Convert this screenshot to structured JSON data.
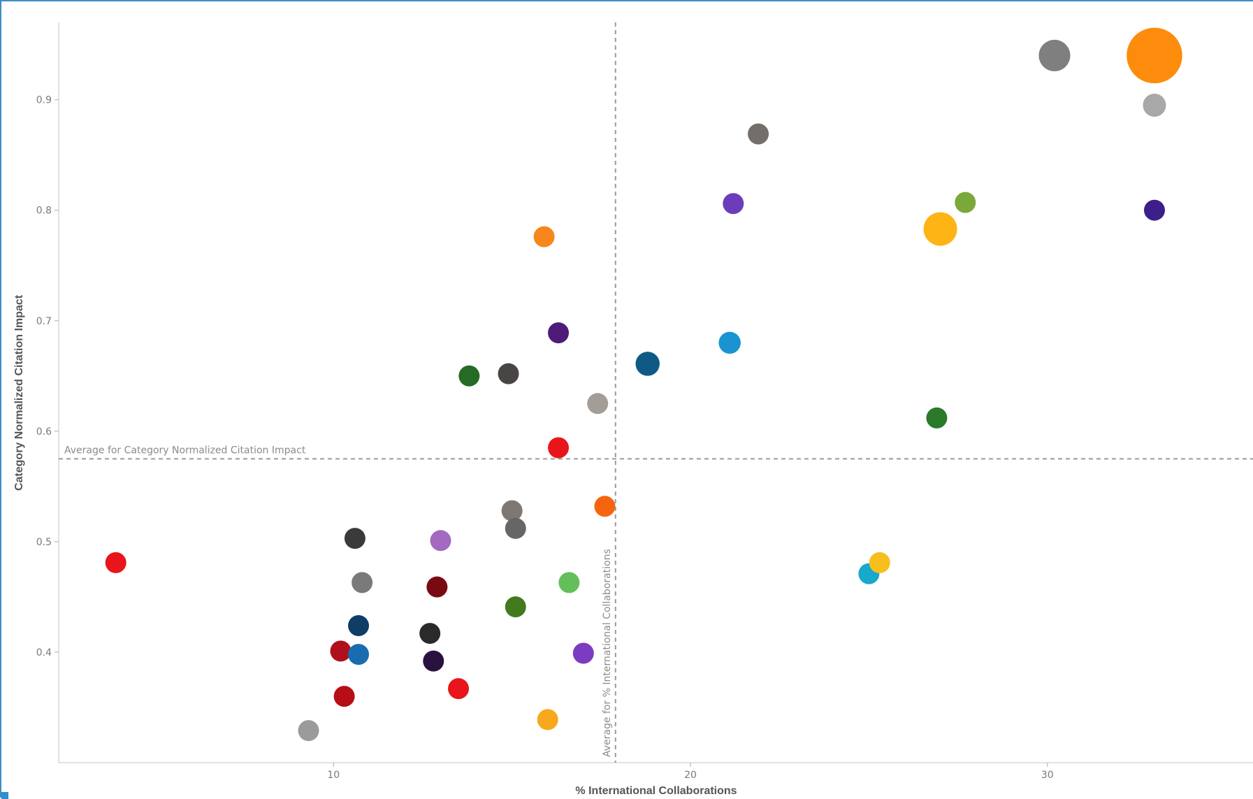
{
  "chart_data": {
    "type": "scatter",
    "title": "",
    "xlabel": "% International Collaborations",
    "ylabel": "Category Normalized Citation Impact",
    "xlim": [
      2.3,
      35.8
    ],
    "ylim": [
      0.3,
      0.97
    ],
    "x_ticks": [
      10,
      20,
      30
    ],
    "y_ticks": [
      0.4,
      0.5,
      0.6,
      0.7,
      0.8,
      0.9
    ],
    "y_tick_labels": [
      "0.4",
      "0.5",
      "0.6",
      "0.7",
      "0.8",
      "0.9"
    ],
    "grid": false,
    "reference_lines": [
      {
        "axis": "y",
        "value": 0.575,
        "label": "Average for Category Normalized Citation Impact"
      },
      {
        "axis": "x",
        "value": 17.9,
        "label": "Average for % International Collaborations"
      }
    ],
    "points": [
      {
        "x": 3.9,
        "y": 0.481,
        "size": 1.0,
        "color": "#e8151b"
      },
      {
        "x": 9.3,
        "y": 0.329,
        "size": 1.0,
        "color": "#9b9b9b"
      },
      {
        "x": 10.2,
        "y": 0.401,
        "size": 1.0,
        "color": "#b0101b"
      },
      {
        "x": 10.3,
        "y": 0.36,
        "size": 1.0,
        "color": "#b60f17"
      },
      {
        "x": 10.6,
        "y": 0.503,
        "size": 1.0,
        "color": "#3a3a3a"
      },
      {
        "x": 10.7,
        "y": 0.398,
        "size": 1.0,
        "color": "#1a6cb0"
      },
      {
        "x": 10.7,
        "y": 0.424,
        "size": 1.0,
        "color": "#0f3d66"
      },
      {
        "x": 10.8,
        "y": 0.463,
        "size": 1.0,
        "color": "#7a7a7a"
      },
      {
        "x": 12.7,
        "y": 0.417,
        "size": 1.0,
        "color": "#2a2a2a"
      },
      {
        "x": 12.8,
        "y": 0.392,
        "size": 1.0,
        "color": "#2a1240"
      },
      {
        "x": 12.9,
        "y": 0.459,
        "size": 1.0,
        "color": "#7a0a12"
      },
      {
        "x": 13.0,
        "y": 0.501,
        "size": 1.0,
        "color": "#a36ac0"
      },
      {
        "x": 13.5,
        "y": 0.367,
        "size": 1.0,
        "color": "#e8151b"
      },
      {
        "x": 13.8,
        "y": 0.65,
        "size": 1.0,
        "color": "#256b25"
      },
      {
        "x": 14.9,
        "y": 0.652,
        "size": 1.0,
        "color": "#4a4545"
      },
      {
        "x": 15.0,
        "y": 0.528,
        "size": 1.0,
        "color": "#7d7873"
      },
      {
        "x": 15.1,
        "y": 0.441,
        "size": 1.0,
        "color": "#447a1e"
      },
      {
        "x": 15.1,
        "y": 0.512,
        "size": 1.0,
        "color": "#666666"
      },
      {
        "x": 15.9,
        "y": 0.776,
        "size": 1.0,
        "color": "#f7871d"
      },
      {
        "x": 16.0,
        "y": 0.339,
        "size": 1.0,
        "color": "#f7a81d"
      },
      {
        "x": 16.3,
        "y": 0.689,
        "size": 1.0,
        "color": "#4e1b78"
      },
      {
        "x": 16.3,
        "y": 0.585,
        "size": 1.0,
        "color": "#e8151b"
      },
      {
        "x": 16.6,
        "y": 0.463,
        "size": 1.0,
        "color": "#63bf5a"
      },
      {
        "x": 17.0,
        "y": 0.399,
        "size": 1.0,
        "color": "#7c3bc0"
      },
      {
        "x": 17.4,
        "y": 0.625,
        "size": 1.0,
        "color": "#a39d96"
      },
      {
        "x": 17.6,
        "y": 0.532,
        "size": 1.0,
        "color": "#f5650f"
      },
      {
        "x": 18.8,
        "y": 0.661,
        "size": 1.15,
        "color": "#0f5a85"
      },
      {
        "x": 21.1,
        "y": 0.68,
        "size": 1.05,
        "color": "#1a94d0"
      },
      {
        "x": 21.2,
        "y": 0.806,
        "size": 1.0,
        "color": "#6b3dbb"
      },
      {
        "x": 21.9,
        "y": 0.869,
        "size": 1.0,
        "color": "#736e69"
      },
      {
        "x": 25.0,
        "y": 0.471,
        "size": 1.0,
        "color": "#17a8cc"
      },
      {
        "x": 25.3,
        "y": 0.481,
        "size": 1.0,
        "color": "#f7bf1d"
      },
      {
        "x": 26.9,
        "y": 0.612,
        "size": 1.0,
        "color": "#2a7a2a"
      },
      {
        "x": 27.0,
        "y": 0.783,
        "size": 1.6,
        "color": "#fdb414"
      },
      {
        "x": 27.7,
        "y": 0.807,
        "size": 1.0,
        "color": "#7ba83a"
      },
      {
        "x": 30.2,
        "y": 0.94,
        "size": 1.5,
        "color": "#7f7f7f"
      },
      {
        "x": 33.0,
        "y": 0.8,
        "size": 1.0,
        "color": "#3d1f8a"
      },
      {
        "x": 33.0,
        "y": 0.895,
        "size": 1.1,
        "color": "#a8a8a8"
      },
      {
        "x": 33.0,
        "y": 0.94,
        "size": 2.65,
        "color": "#fd8c0c"
      }
    ]
  }
}
